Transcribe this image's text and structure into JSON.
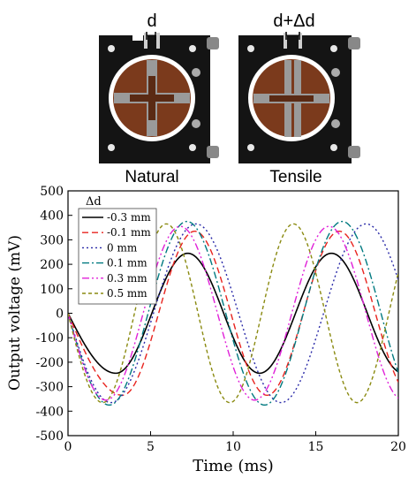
{
  "photos": [
    {
      "caption": "Natural",
      "gap_label": "d"
    },
    {
      "caption": "Tensile",
      "gap_label": "d+Δd"
    }
  ],
  "chart_data": {
    "type": "line",
    "title": "",
    "xlabel": "Time (ms)",
    "ylabel": "Output voltage (mV)",
    "xlim": [
      0,
      20
    ],
    "ylim": [
      -500,
      500
    ],
    "xticks": [
      "0",
      "5",
      "10",
      "15",
      "20"
    ],
    "yticks": [
      "-500",
      "-400",
      "-300",
      "-200",
      "-100",
      "0",
      "100",
      "200",
      "300",
      "400",
      "500"
    ],
    "legend_title": "Δd",
    "legend_position": "top-left",
    "grid": false,
    "series": [
      {
        "name": "-0.3 mm",
        "color": "#000000",
        "dash": "solid",
        "amp": 245,
        "period": 8.7,
        "trough_t": 2.9
      },
      {
        "name": "-0.1 mm",
        "color": "#e8231e",
        "dash": "dash",
        "amp": 335,
        "period": 8.75,
        "trough_t": 3.3
      },
      {
        "name": "0 mm",
        "color": "#2a2aa8",
        "dash": "dot",
        "amp": 365,
        "period": 10.3,
        "trough_t": 2.6
      },
      {
        "name": "0.1 mm",
        "color": "#007a80",
        "dash": "dashdot",
        "amp": 375,
        "period": 9.4,
        "trough_t": 2.5
      },
      {
        "name": "0.3 mm",
        "color": "#e020d8",
        "dash": "dashdotdot",
        "amp": 355,
        "period": 9.0,
        "trough_t": 2.3
      },
      {
        "name": "0.5 mm",
        "color": "#8a8a10",
        "dash": "shortdash",
        "amp": 365,
        "period": 7.7,
        "trough_t": 2.1
      }
    ]
  }
}
